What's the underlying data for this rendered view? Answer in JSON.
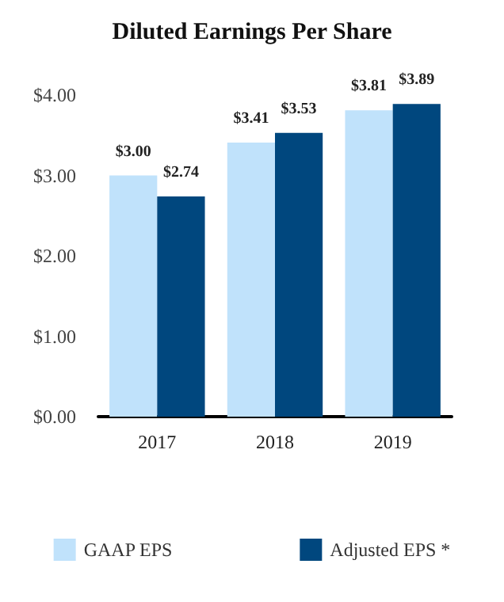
{
  "chart_data": {
    "type": "bar",
    "title": "Diluted Earnings Per Share",
    "categories": [
      "2017",
      "2018",
      "2019"
    ],
    "series": [
      {
        "name": "GAAP EPS",
        "color": "#c0e2fb",
        "values": [
          3.0,
          3.41,
          3.81
        ],
        "value_labels": [
          "$3.00",
          "$3.41",
          "$3.81"
        ]
      },
      {
        "name": "Adjusted EPS *",
        "color": "#00477e",
        "values": [
          2.74,
          3.53,
          3.89
        ],
        "value_labels": [
          "$2.74",
          "$3.53",
          "$3.89"
        ]
      }
    ],
    "ylim": [
      0,
      4
    ],
    "yticks": [
      {
        "value": 0,
        "label": "$0.00"
      },
      {
        "value": 1,
        "label": "$1.00"
      },
      {
        "value": 2,
        "label": "$2.00"
      },
      {
        "value": 3,
        "label": "$3.00"
      },
      {
        "value": 4,
        "label": "$4.00"
      }
    ],
    "grid": false,
    "legend": "bottom"
  }
}
